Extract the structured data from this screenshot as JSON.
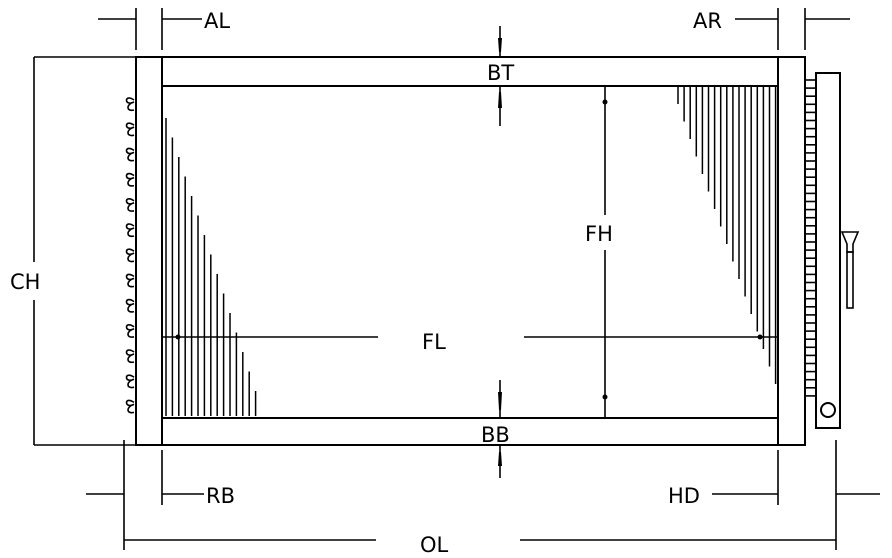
{
  "labels": {
    "al": "AL",
    "ar": "AR",
    "bt": "BT",
    "bb": "BB",
    "ch": "CH",
    "fh": "FH",
    "fl": "FL",
    "rb": "RB",
    "hd": "HD",
    "ol": "OL"
  }
}
